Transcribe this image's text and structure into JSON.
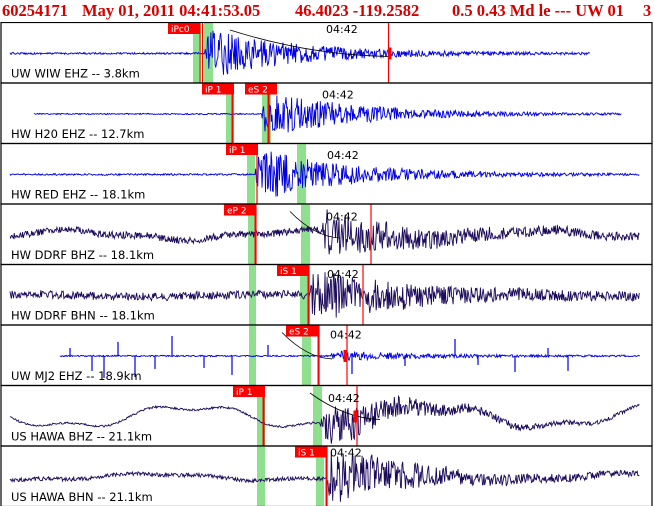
{
  "header": {
    "event_id": "60254171",
    "datetime": "May 01, 2011 04:41:53.05",
    "location": "46.4023 -119.2582",
    "magnitude": "0.5 0.43 Md le --- UW 01",
    "page": "3"
  },
  "colors": {
    "header_text": "#d40000",
    "pick_box": "#ff0000",
    "pick_text": "#ffffff",
    "window_band": "#8ee08e",
    "pick_line": "#ff0000",
    "trace_blue": "#0000e0",
    "trace_purple": "#1c0a5a",
    "frame": "#000000"
  },
  "time_label": "04:42",
  "panels": [
    {
      "name": "UW WIW EHZ -- 3.8km",
      "trace_color": "blue",
      "picks": [
        {
          "label": "iPc0",
          "color": "red"
        }
      ]
    },
    {
      "name": "HW H20 EHZ -- 12.7km",
      "trace_color": "blue",
      "picks": [
        {
          "label": "iP 1",
          "color": "red"
        },
        {
          "label": "eS 2",
          "color": "red"
        }
      ]
    },
    {
      "name": "HW RED EHZ -- 18.1km",
      "trace_color": "blue",
      "picks": [
        {
          "label": "iP 1",
          "color": "red"
        }
      ]
    },
    {
      "name": "HW DDRF BHZ -- 18.1km",
      "trace_color": "purple",
      "picks": [
        {
          "label": "eP 2",
          "color": "red"
        }
      ]
    },
    {
      "name": "HW DDRF BHN -- 18.1km",
      "trace_color": "purple",
      "picks": [
        {
          "label": "iS 1",
          "color": "red"
        }
      ]
    },
    {
      "name": "UW MJ2 EHZ -- 18.9km",
      "trace_color": "blue",
      "picks": [
        {
          "label": "eS 2",
          "color": "red"
        }
      ]
    },
    {
      "name": "US HAWA BHZ -- 21.1km",
      "trace_color": "purple",
      "picks": [
        {
          "label": "iP 1",
          "color": "red"
        }
      ]
    },
    {
      "name": "US HAWA BHN -- 21.1km",
      "trace_color": "purple",
      "picks": [
        {
          "label": "iS 1",
          "color": "red"
        }
      ]
    }
  ]
}
